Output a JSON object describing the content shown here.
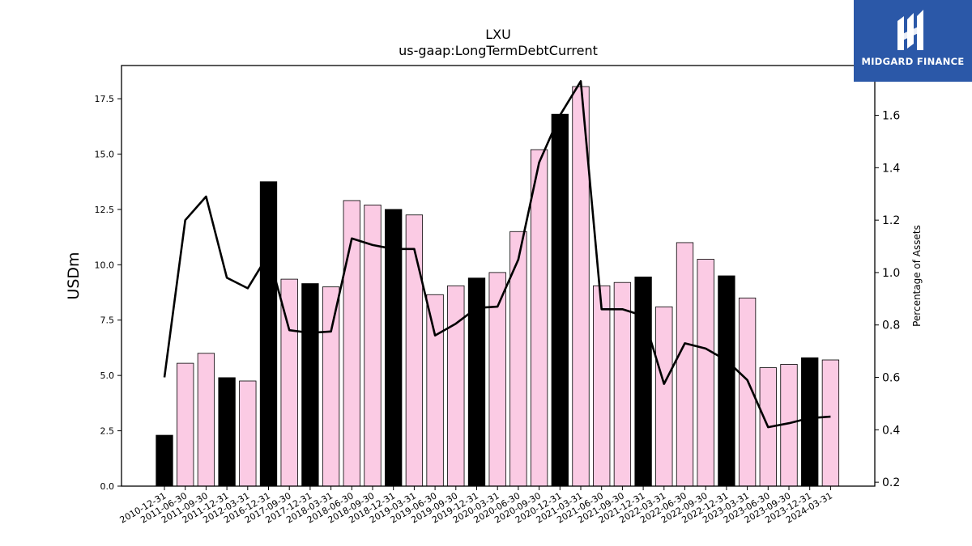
{
  "chart_data": {
    "type": "bar",
    "title": "LXU",
    "subtitle": "us-gaap:LongTermDebtCurrent",
    "ylabel": "USDm",
    "y2label": "Percentage of Assets",
    "ylim": [
      0,
      19.0
    ],
    "y2lim": [
      0.185,
      1.79
    ],
    "yticks": [
      "0.0",
      "2.5",
      "5.0",
      "7.5",
      "10.0",
      "12.5",
      "15.0",
      "17.5"
    ],
    "y2ticks": [
      "0.2",
      "0.4",
      "0.6",
      "0.8",
      "1.0",
      "1.2",
      "1.4",
      "1.6"
    ],
    "categories": [
      "2010-12-31",
      "2011-06-30",
      "2011-09-30",
      "2011-12-31",
      "2012-03-31",
      "2016-12-31",
      "2017-09-30",
      "2017-12-31",
      "2018-03-31",
      "2018-06-30",
      "2018-09-30",
      "2018-12-31",
      "2019-03-31",
      "2019-06-30",
      "2019-09-30",
      "2019-12-31",
      "2020-03-31",
      "2020-06-30",
      "2020-09-30",
      "2020-12-31",
      "2021-03-31",
      "2021-06-30",
      "2021-09-30",
      "2021-12-31",
      "2022-03-31",
      "2022-06-30",
      "2022-09-30",
      "2022-12-31",
      "2023-03-31",
      "2023-06-30",
      "2023-09-30",
      "2023-12-31",
      "2024-03-31"
    ],
    "series": [
      {
        "values": [
          2.3,
          5.55,
          6.0,
          4.9,
          4.75,
          13.75,
          9.35,
          9.15,
          9.0,
          12.9,
          12.7,
          12.5,
          12.25,
          8.65,
          9.05,
          9.4,
          9.65,
          11.5,
          15.2,
          16.8,
          18.05,
          9.05,
          9.2,
          9.45,
          8.1,
          11.0,
          10.25,
          9.5,
          8.5,
          5.35,
          5.5,
          5.8,
          5.7
        ],
        "year_end": [
          true,
          false,
          false,
          true,
          false,
          true,
          false,
          true,
          false,
          false,
          false,
          true,
          false,
          false,
          false,
          true,
          false,
          false,
          false,
          true,
          false,
          false,
          false,
          true,
          false,
          false,
          false,
          true,
          false,
          false,
          false,
          true,
          false
        ],
        "colors": {
          "year_end": "#000000",
          "quarter": "#fbcbe4",
          "edge": "#000000"
        }
      },
      {
        "axis": "right",
        "values": [
          0.6,
          1.2,
          1.29,
          0.98,
          0.94,
          1.07,
          0.78,
          0.77,
          0.775,
          1.13,
          1.105,
          1.09,
          1.09,
          0.76,
          0.805,
          0.865,
          0.87,
          1.05,
          1.42,
          1.6,
          1.73,
          0.86,
          0.86,
          0.835,
          0.575,
          0.73,
          0.71,
          0.665,
          0.59,
          0.41,
          0.425,
          0.445,
          0.45
        ],
        "color": "#000000"
      }
    ]
  },
  "logo": {
    "text": "MIDGARD FINANCE"
  }
}
